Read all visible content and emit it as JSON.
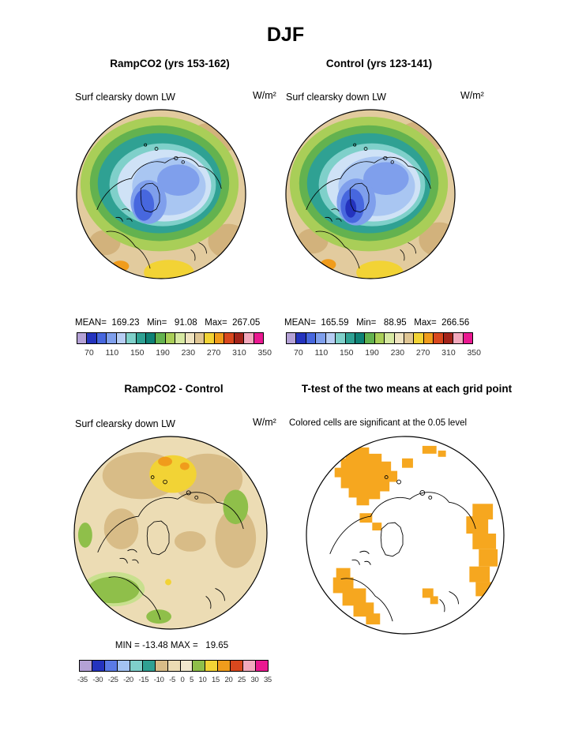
{
  "title": "DJF",
  "panels": {
    "ramp": {
      "header": "RampCO2 (yrs 153-162)",
      "var_label": "Surf clearsky down LW",
      "units": "W/m²",
      "stats": "MEAN=  169.23   Min=   91.08   Max=  267.05"
    },
    "control": {
      "header": "Control (yrs 123-141)",
      "var_label": "Surf clearsky down LW",
      "units": "W/m²",
      "stats": "MEAN=  165.59   Min=   88.95   Max=  266.56"
    },
    "diff": {
      "header": "RampCO2 - Control",
      "var_label": "Surf clearsky down LW",
      "units": "W/m²",
      "stats": "MIN = -13.48 MAX =   19.65"
    },
    "ttest": {
      "header": "T-test of the two means at each grid point",
      "subtitle": "Colored cells are significant at the 0.05 level"
    }
  },
  "colorbars": {
    "main": {
      "colors": [
        "#b4a1d6",
        "#2433be",
        "#4767de",
        "#7f9fec",
        "#b7cdf4",
        "#7fd0ca",
        "#2fa193",
        "#0e8175",
        "#63b24f",
        "#a9ce58",
        "#d6e8a2",
        "#efe3c0",
        "#dfc593",
        "#f2d335",
        "#f09c1c",
        "#d9481e",
        "#a3241a",
        "#f2a9bd",
        "#ea1890"
      ],
      "ticks": [
        "70",
        "110",
        "150",
        "190",
        "230",
        "270",
        "310",
        "350"
      ]
    },
    "diff": {
      "colors": [
        "#b4a1d6",
        "#2433be",
        "#5a7ae6",
        "#a3c2f2",
        "#7fd0ca",
        "#2fa193",
        "#d8bc87",
        "#ecdcb4",
        "#f0e7cd",
        "#8fbf4a",
        "#f2d335",
        "#f09c1c",
        "#d9481e",
        "#f2a9bd",
        "#ea1890"
      ],
      "ticks": [
        "-35",
        "-30",
        "-25",
        "-20",
        "-15",
        "-10",
        "-5",
        "0",
        "5",
        "10",
        "15",
        "20",
        "25",
        "30",
        "35"
      ]
    }
  },
  "chart_data": [
    {
      "type": "heatmap",
      "title": "RampCO2 (yrs 153-162)",
      "variable": "Surf clearsky down LW",
      "units": "W/m²",
      "season": "DJF",
      "stats": {
        "mean": 169.23,
        "min": 91.08,
        "max": 267.05
      },
      "scale_ticks": [
        70,
        110,
        150,
        190,
        230,
        270,
        310,
        350
      ],
      "layout": "north polar map, filled contours, horizontal colorbar below"
    },
    {
      "type": "heatmap",
      "title": "Control (yrs 123-141)",
      "variable": "Surf clearsky down LW",
      "units": "W/m²",
      "season": "DJF",
      "stats": {
        "mean": 165.59,
        "min": 88.95,
        "max": 266.56
      },
      "scale_ticks": [
        70,
        110,
        150,
        190,
        230,
        270,
        310,
        350
      ],
      "layout": "north polar map, filled contours, horizontal colorbar below"
    },
    {
      "type": "heatmap",
      "title": "RampCO2 - Control",
      "variable": "Surf clearsky down LW",
      "units": "W/m²",
      "season": "DJF",
      "stats": {
        "min": -13.48,
        "max": 19.65
      },
      "scale_ticks": [
        -35,
        -30,
        -25,
        -20,
        -15,
        -10,
        -5,
        0,
        5,
        10,
        15,
        20,
        25,
        30,
        35
      ],
      "layout": "north polar map, filled contours, horizontal colorbar below"
    },
    {
      "type": "heatmap",
      "title": "T-test of the two means at each grid point",
      "note": "Colored cells are significant at the 0.05 level",
      "layout": "north polar map, white background with orange significant cells"
    }
  ]
}
